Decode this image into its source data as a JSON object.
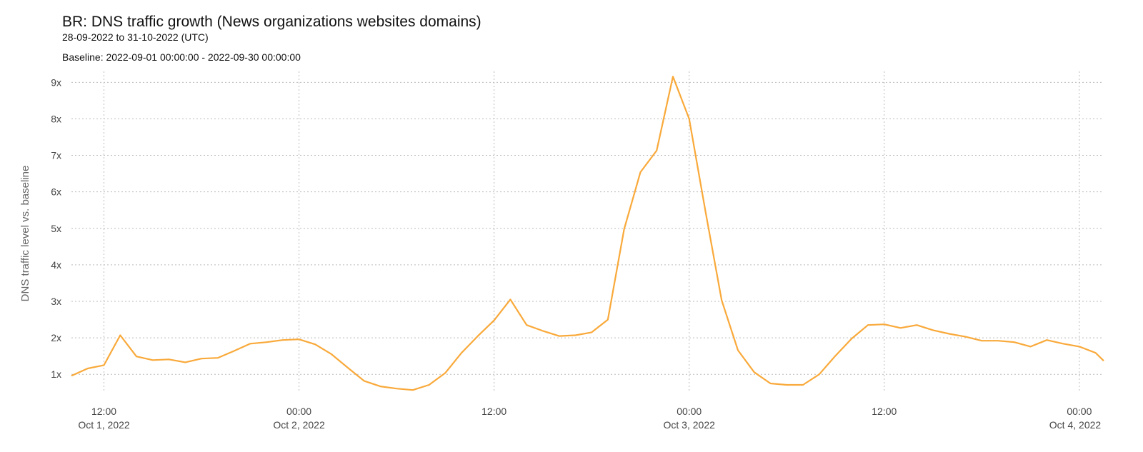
{
  "chart_data": {
    "type": "line",
    "title": "BR: DNS traffic growth (News organizations websites domains)",
    "subtitle": "28-09-2022 to 31-10-2022 (UTC)",
    "baseline": "Baseline: 2022-09-01 00:00:00 - 2022-09-30 00:00:00",
    "y_label": "DNS traffic level vs. baseline",
    "x": [
      "2022-10-01T10:00",
      "2022-10-01T11:00",
      "2022-10-01T12:00",
      "2022-10-01T13:00",
      "2022-10-01T14:00",
      "2022-10-01T15:00",
      "2022-10-01T16:00",
      "2022-10-01T17:00",
      "2022-10-01T18:00",
      "2022-10-01T19:00",
      "2022-10-01T20:00",
      "2022-10-01T21:00",
      "2022-10-01T22:00",
      "2022-10-01T23:00",
      "2022-10-02T00:00",
      "2022-10-02T01:00",
      "2022-10-02T02:00",
      "2022-10-02T03:00",
      "2022-10-02T04:00",
      "2022-10-02T05:00",
      "2022-10-02T06:00",
      "2022-10-02T07:00",
      "2022-10-02T08:00",
      "2022-10-02T09:00",
      "2022-10-02T10:00",
      "2022-10-02T11:00",
      "2022-10-02T12:00",
      "2022-10-02T13:00",
      "2022-10-02T14:00",
      "2022-10-02T15:00",
      "2022-10-02T16:00",
      "2022-10-02T17:00",
      "2022-10-02T18:00",
      "2022-10-02T19:00",
      "2022-10-02T20:00",
      "2022-10-02T21:00",
      "2022-10-02T22:00",
      "2022-10-02T23:00",
      "2022-10-03T00:00",
      "2022-10-03T01:00",
      "2022-10-03T02:00",
      "2022-10-03T03:00",
      "2022-10-03T04:00",
      "2022-10-03T05:00",
      "2022-10-03T06:00",
      "2022-10-03T07:00",
      "2022-10-03T08:00",
      "2022-10-03T09:00",
      "2022-10-03T10:00",
      "2022-10-03T11:00",
      "2022-10-03T12:00",
      "2022-10-03T13:00",
      "2022-10-03T14:00",
      "2022-10-03T15:00",
      "2022-10-03T16:00",
      "2022-10-03T17:00",
      "2022-10-03T18:00",
      "2022-10-03T19:00",
      "2022-10-03T20:00",
      "2022-10-03T21:00",
      "2022-10-03T22:00",
      "2022-10-03T23:00",
      "2022-10-04T00:00",
      "2022-10-04T01:00",
      "2022-10-04T01:30"
    ],
    "series": [
      {
        "name": "BR",
        "color": "#f9a93a",
        "values": [
          0.96,
          1.16,
          1.25,
          2.07,
          1.49,
          1.39,
          1.41,
          1.33,
          1.43,
          1.45,
          1.64,
          1.84,
          1.88,
          1.94,
          1.96,
          1.82,
          1.55,
          1.18,
          0.82,
          0.67,
          0.61,
          0.57,
          0.71,
          1.04,
          1.59,
          2.05,
          2.48,
          3.05,
          2.35,
          2.19,
          2.05,
          2.07,
          2.15,
          2.5,
          4.98,
          6.54,
          7.13,
          9.16,
          8.0,
          5.47,
          3.03,
          1.66,
          1.06,
          0.75,
          0.71,
          0.71,
          1.0,
          1.51,
          1.98,
          2.35,
          2.37,
          2.27,
          2.35,
          2.21,
          2.11,
          2.03,
          1.92,
          1.92,
          1.88,
          1.76,
          1.94,
          1.84,
          1.76,
          1.59,
          1.37
        ]
      }
    ],
    "xlim": [
      "2022-10-01T10:00",
      "2022-10-04T01:30"
    ],
    "xticks": [
      {
        "value": "2022-10-01T12:00",
        "label": "12:00"
      },
      {
        "value": "2022-10-02T00:00",
        "label": "00:00"
      },
      {
        "value": "2022-10-02T12:00",
        "label": "12:00"
      },
      {
        "value": "2022-10-03T00:00",
        "label": "00:00"
      },
      {
        "value": "2022-10-03T12:00",
        "label": "12:00"
      },
      {
        "value": "2022-10-04T00:00",
        "label": "00:00"
      }
    ],
    "xtick_dates": [
      "Oct 1, 2022",
      "Oct 2, 2022",
      null,
      "Oct 3, 2022",
      null,
      "Oct 4, 2022"
    ],
    "ylim": [
      0.3,
      9.3
    ],
    "yticks": [
      {
        "value": 1,
        "label": "1x"
      },
      {
        "value": 2,
        "label": "2x"
      },
      {
        "value": 3,
        "label": "3x"
      },
      {
        "value": 4,
        "label": "4x"
      },
      {
        "value": 5,
        "label": "5x"
      },
      {
        "value": 6,
        "label": "6x"
      },
      {
        "value": 7,
        "label": "7x"
      },
      {
        "value": 8,
        "label": "8x"
      },
      {
        "value": 9,
        "label": "9x"
      }
    ],
    "grid": true
  }
}
